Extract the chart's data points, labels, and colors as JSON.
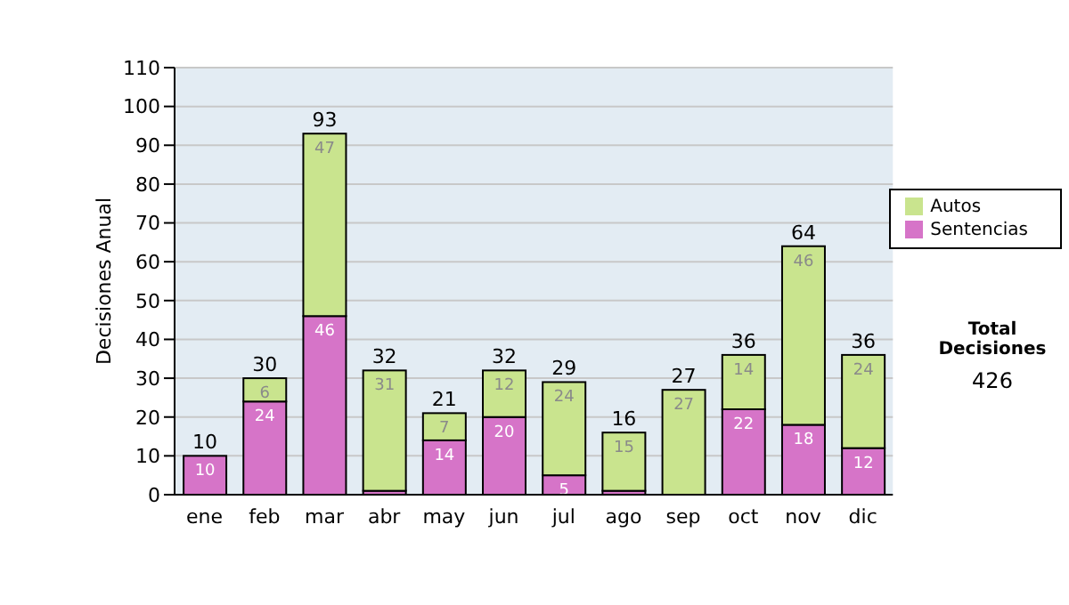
{
  "chart_data": {
    "type": "bar",
    "stacked": true,
    "ylabel": "Decisiones Anual",
    "categories": [
      "ene",
      "feb",
      "mar",
      "abr",
      "may",
      "jun",
      "jul",
      "ago",
      "sep",
      "oct",
      "nov",
      "dic"
    ],
    "series": [
      {
        "name": "Sentencias",
        "color": "#d674c8",
        "values": [
          10,
          24,
          46,
          1,
          14,
          20,
          5,
          1,
          0,
          22,
          18,
          12
        ],
        "value_labels": [
          "10",
          "24",
          "46",
          null,
          "14",
          "20",
          "5",
          null,
          null,
          "22",
          "18",
          "12"
        ]
      },
      {
        "name": "Autos",
        "color": "#c9e48e",
        "values": [
          0,
          6,
          47,
          31,
          7,
          12,
          24,
          15,
          27,
          14,
          46,
          24
        ],
        "value_labels": [
          null,
          "6",
          "47",
          "31",
          "7",
          "12",
          "24",
          "15",
          "27",
          "14",
          "46",
          "24"
        ]
      }
    ],
    "totals": [
      "10",
      "30",
      "93",
      "32",
      "21",
      "32",
      "29",
      "16",
      "27",
      "36",
      "64",
      "36"
    ],
    "ylim": [
      0,
      110
    ],
    "yticks": [
      0,
      10,
      20,
      30,
      40,
      50,
      60,
      70,
      80,
      90,
      100,
      110
    ],
    "grid": "y",
    "legend": "right",
    "annotations": [
      "Total Decisiones",
      "426"
    ]
  }
}
